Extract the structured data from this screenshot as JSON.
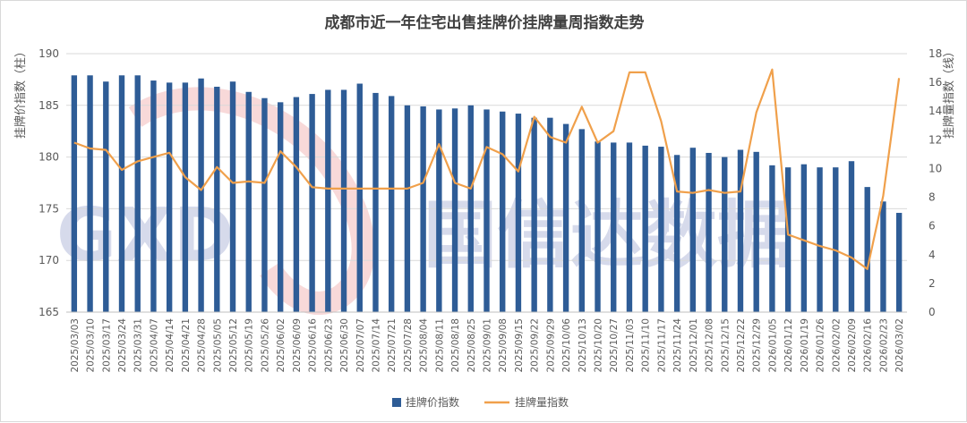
{
  "chart_data": {
    "type": "bar+line",
    "title": "成都市近一年住宅出售挂牌价挂牌量周指数走势",
    "ylabel_left": "挂牌价指数（柱）",
    "ylabel_right": "挂牌量指数（线）",
    "ylim_left": [
      165,
      190
    ],
    "yticks_left": [
      "165",
      "170",
      "175",
      "180",
      "185",
      "190"
    ],
    "ylim_right": [
      0,
      18
    ],
    "yticks_right": [
      "0",
      "2",
      "4",
      "6",
      "8",
      "10",
      "12",
      "14",
      "16",
      "18"
    ],
    "grid": true,
    "legend_position": "bottom",
    "categories": [
      "2025/03/03",
      "2025/03/10",
      "2025/03/17",
      "2025/03/24",
      "2025/03/31",
      "2025/04/07",
      "2025/04/14",
      "2025/04/21",
      "2025/04/28",
      "2025/05/05",
      "2025/05/12",
      "2025/05/19",
      "2025/05/26",
      "2025/06/02",
      "2025/06/09",
      "2025/06/16",
      "2025/06/23",
      "2025/06/30",
      "2025/07/07",
      "2025/07/14",
      "2025/07/21",
      "2025/07/28",
      "2025/08/04",
      "2025/08/11",
      "2025/08/18",
      "2025/08/25",
      "2025/09/01",
      "2025/09/08",
      "2025/09/15",
      "2025/09/22",
      "2025/09/29",
      "2025/10/06",
      "2025/10/13",
      "2025/10/20",
      "2025/10/27",
      "2025/11/03",
      "2025/11/10",
      "2025/11/17",
      "2025/11/24",
      "2025/12/01",
      "2025/12/08",
      "2025/12/15",
      "2025/12/22",
      "2025/12/29",
      "2026/01/05",
      "2026/01/12",
      "2026/01/19",
      "2026/01/26",
      "2026/02/02",
      "2026/02/09",
      "2026/02/16",
      "2026/02/23",
      "2026/03/02"
    ],
    "series": [
      {
        "name": "挂牌价指数",
        "type": "bar",
        "axis": "left",
        "color": "#2e5c96",
        "values": [
          187.9,
          187.9,
          187.3,
          187.9,
          187.9,
          187.4,
          187.2,
          187.2,
          187.6,
          186.8,
          187.3,
          186.3,
          185.7,
          185.3,
          185.8,
          186.1,
          186.5,
          186.5,
          187.1,
          186.2,
          185.9,
          185.0,
          184.9,
          184.6,
          184.7,
          185.0,
          184.6,
          184.4,
          184.2,
          183.8,
          183.8,
          183.2,
          182.7,
          181.5,
          181.4,
          181.4,
          181.1,
          181.0,
          180.2,
          180.9,
          180.4,
          180.0,
          180.7,
          180.5,
          179.2,
          179.0,
          179.3,
          179.0,
          179.0,
          179.6,
          177.1,
          175.7,
          174.6
        ]
      },
      {
        "name": "挂牌量指数",
        "type": "line",
        "axis": "right",
        "color": "#f0a04b",
        "values": [
          11.8,
          11.4,
          11.3,
          9.9,
          10.5,
          10.8,
          11.1,
          9.4,
          8.5,
          10.1,
          9.0,
          9.1,
          9.0,
          11.2,
          10.1,
          8.7,
          8.6,
          8.6,
          8.6,
          8.6,
          8.6,
          8.6,
          9.0,
          11.7,
          9.0,
          8.6,
          11.5,
          11.0,
          9.8,
          13.6,
          12.2,
          11.8,
          14.3,
          11.8,
          12.6,
          16.7,
          16.7,
          13.3,
          8.4,
          8.3,
          8.5,
          8.3,
          8.4,
          13.9,
          16.9,
          5.4,
          5.0,
          4.6,
          4.3,
          3.8,
          3.0,
          8.1,
          16.3
        ]
      }
    ]
  },
  "watermark": {
    "text": "国信达数据",
    "logo_letters": "GXD"
  },
  "colors": {
    "bar": "#2e5c96",
    "line": "#f0a04b",
    "grid": "#d9d9d9",
    "text": "#595959",
    "title": "#404040"
  }
}
